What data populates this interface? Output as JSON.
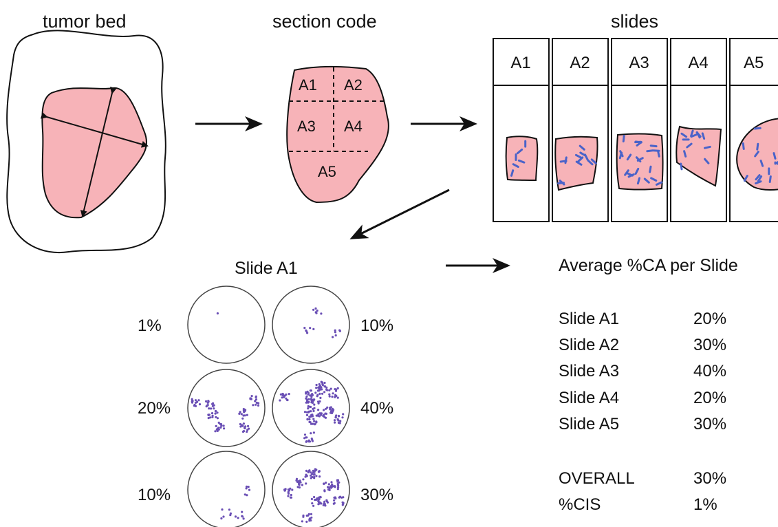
{
  "headers": {
    "tumor_bed": "tumor bed",
    "section_code": "section code",
    "slides": "slides"
  },
  "section_labels": [
    "A1",
    "A2",
    "A3",
    "A4",
    "A5"
  ],
  "slide_labels": [
    "A1",
    "A2",
    "A3",
    "A4",
    "A5"
  ],
  "slide_a1": {
    "title": "Slide A1",
    "fields": [
      {
        "label": "1%",
        "percent": 1
      },
      {
        "label": "10%",
        "percent": 10
      },
      {
        "label": "20%",
        "percent": 20
      },
      {
        "label": "40%",
        "percent": 40
      },
      {
        "label": "10%",
        "percent": 10
      },
      {
        "label": "30%",
        "percent": 30
      }
    ]
  },
  "summary": {
    "title": "Average %CA per Slide",
    "rows": [
      {
        "name": "Slide A1",
        "value": "20%"
      },
      {
        "name": "Slide A2",
        "value": "30%"
      },
      {
        "name": "Slide A3",
        "value": "40%"
      },
      {
        "name": "Slide A4",
        "value": "20%"
      },
      {
        "name": "Slide A5",
        "value": "30%"
      }
    ],
    "overall_label": "OVERALL",
    "overall_value": "30%",
    "cis_label": "%CIS",
    "cis_value": "1%"
  },
  "colors": {
    "tissue_fill": "#f7b3b8",
    "cell_blue": "#4a63c9",
    "cell_purple": "#6a4fb5",
    "stroke": "#111111"
  }
}
